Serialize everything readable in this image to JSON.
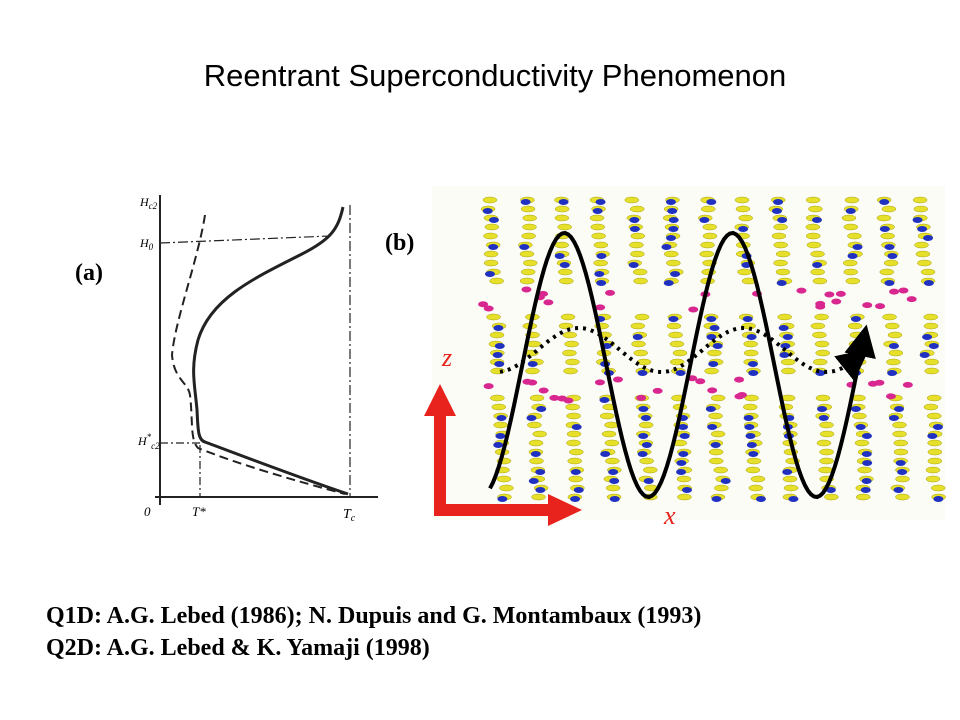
{
  "title": "Reentrant Superconductivity Phenomenon",
  "panel_a": {
    "label": "(a)",
    "hc2": {
      "base": "H",
      "sub": "c2"
    },
    "h0": {
      "base": "H",
      "sub": "0"
    },
    "hc2_star": {
      "base": "H",
      "sup": "*",
      "sub": "c2"
    },
    "origin": "0",
    "t_star": "T*",
    "tc": {
      "base": "T",
      "sub": "c"
    }
  },
  "panel_b": {
    "label": "(b)",
    "z_axis": "z",
    "x_axis": "x"
  },
  "references": [
    "Q1D:  A.G. Lebed (1986); N. Dupuis and G. Montambaux (1993)",
    "Q2D:  A.G. Lebed & K. Yamaji (1998)"
  ]
}
